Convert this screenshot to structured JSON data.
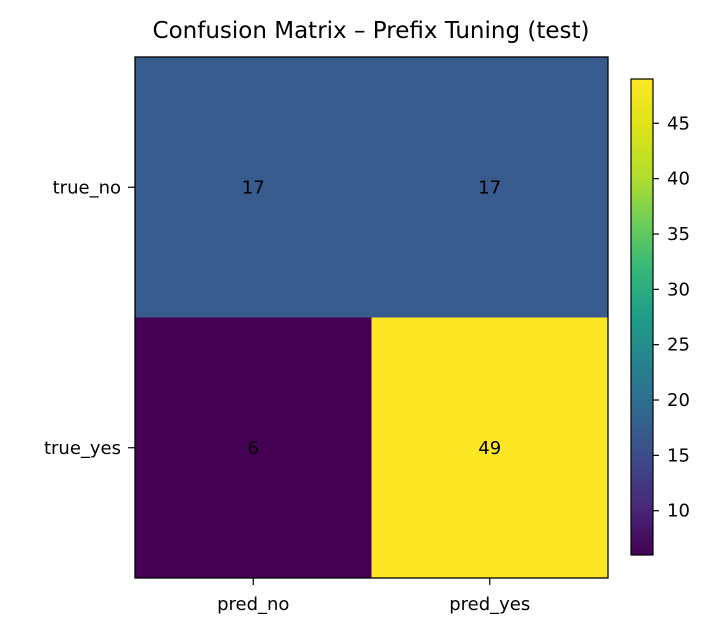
{
  "chart_data": {
    "type": "heatmap",
    "title": "Confusion Matrix – Prefix Tuning (test)",
    "x_categories": [
      "pred_no",
      "pred_yes"
    ],
    "y_categories": [
      "true_no",
      "true_yes"
    ],
    "values": [
      [
        17,
        17
      ],
      [
        6,
        49
      ]
    ],
    "colorbar": {
      "ticks": [
        10,
        15,
        20,
        25,
        30,
        35,
        40,
        45
      ],
      "range": [
        6,
        49
      ],
      "colormap": "viridis"
    },
    "grid": false,
    "legend": "colorbar-right",
    "annotation_color": "#000000"
  }
}
